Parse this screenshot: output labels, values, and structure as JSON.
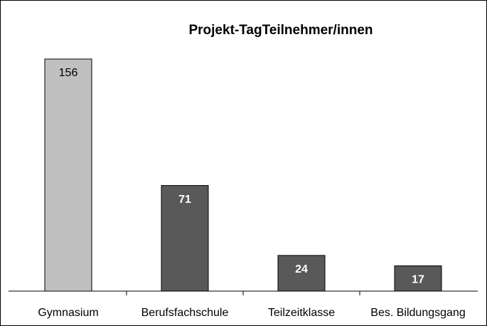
{
  "chart_data": {
    "type": "bar",
    "title": "Projekt-TagTeilnehmer/innen",
    "categories": [
      "Gymnasium",
      "Berufsfachschule",
      "Teilzeitklasse",
      "Bes. Bildungsgang"
    ],
    "values": [
      156,
      71,
      24,
      17
    ],
    "colors": [
      "#c0c0c0",
      "#595959",
      "#595959",
      "#595959"
    ],
    "label_colors": [
      "#000000",
      "#ffffff",
      "#ffffff",
      "#ffffff"
    ]
  }
}
